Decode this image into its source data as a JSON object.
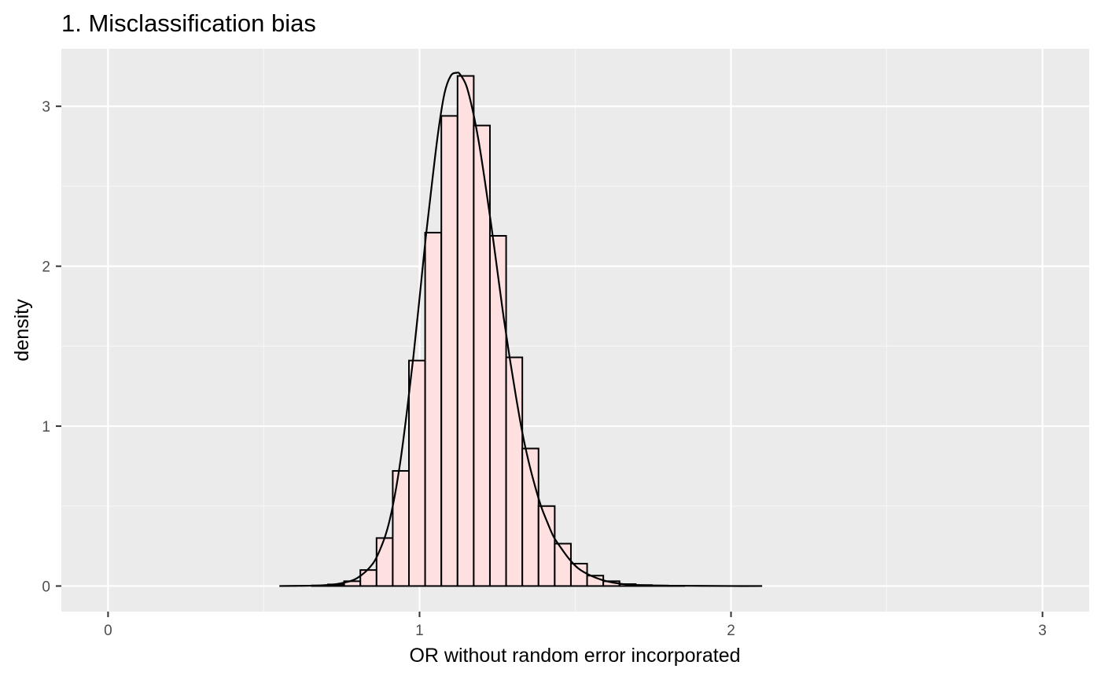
{
  "chart_data": {
    "type": "bar",
    "subtype": "histogram-with-density",
    "title": "1. Misclassification bias",
    "xlabel": "OR without random error incorporated",
    "ylabel": "density",
    "xlim": [
      -0.15,
      3.15
    ],
    "ylim": [
      -0.16,
      3.36
    ],
    "x_ticks": [
      0,
      1,
      2,
      3
    ],
    "x_tick_labels": [
      "0",
      "1",
      "2",
      "3"
    ],
    "y_ticks": [
      0,
      1,
      2,
      3
    ],
    "y_tick_labels": [
      "0",
      "1",
      "2",
      "3"
    ],
    "grid": true,
    "bin_width": 0.052,
    "bins": [
      {
        "x0": 0.55,
        "x1": 0.602,
        "density": 0.0
      },
      {
        "x0": 0.602,
        "x1": 0.654,
        "density": 0.0
      },
      {
        "x0": 0.654,
        "x1": 0.706,
        "density": 0.003
      },
      {
        "x0": 0.706,
        "x1": 0.758,
        "density": 0.01
      },
      {
        "x0": 0.758,
        "x1": 0.81,
        "density": 0.03
      },
      {
        "x0": 0.81,
        "x1": 0.862,
        "density": 0.1
      },
      {
        "x0": 0.862,
        "x1": 0.914,
        "density": 0.3
      },
      {
        "x0": 0.914,
        "x1": 0.966,
        "density": 0.72
      },
      {
        "x0": 0.966,
        "x1": 1.018,
        "density": 1.41
      },
      {
        "x0": 1.018,
        "x1": 1.07,
        "density": 2.21
      },
      {
        "x0": 1.07,
        "x1": 1.122,
        "density": 2.94
      },
      {
        "x0": 1.122,
        "x1": 1.174,
        "density": 3.19
      },
      {
        "x0": 1.174,
        "x1": 1.226,
        "density": 2.88
      },
      {
        "x0": 1.226,
        "x1": 1.278,
        "density": 2.19
      },
      {
        "x0": 1.278,
        "x1": 1.33,
        "density": 1.43
      },
      {
        "x0": 1.33,
        "x1": 1.382,
        "density": 0.86
      },
      {
        "x0": 1.382,
        "x1": 1.434,
        "density": 0.5
      },
      {
        "x0": 1.434,
        "x1": 1.486,
        "density": 0.265
      },
      {
        "x0": 1.486,
        "x1": 1.538,
        "density": 0.14
      },
      {
        "x0": 1.538,
        "x1": 1.59,
        "density": 0.065
      },
      {
        "x0": 1.59,
        "x1": 1.642,
        "density": 0.03
      },
      {
        "x0": 1.642,
        "x1": 1.694,
        "density": 0.012
      },
      {
        "x0": 1.694,
        "x1": 1.746,
        "density": 0.006
      },
      {
        "x0": 1.746,
        "x1": 1.798,
        "density": 0.003
      },
      {
        "x0": 1.798,
        "x1": 1.85,
        "density": 0.001
      },
      {
        "x0": 1.85,
        "x1": 1.902,
        "density": 0.0
      },
      {
        "x0": 1.902,
        "x1": 1.954,
        "density": 0.0
      },
      {
        "x0": 1.954,
        "x1": 2.006,
        "density": 0.0
      },
      {
        "x0": 2.006,
        "x1": 2.058,
        "density": 0.0
      },
      {
        "x0": 2.058,
        "x1": 2.1,
        "density": 0.0
      }
    ],
    "density_curve": {
      "x": [
        0.55,
        0.65,
        0.7,
        0.75,
        0.8,
        0.85,
        0.88,
        0.9,
        0.92,
        0.94,
        0.96,
        0.98,
        1.0,
        1.02,
        1.04,
        1.06,
        1.08,
        1.1,
        1.12,
        1.13,
        1.15,
        1.17,
        1.19,
        1.21,
        1.23,
        1.25,
        1.27,
        1.29,
        1.31,
        1.33,
        1.35,
        1.37,
        1.39,
        1.41,
        1.43,
        1.45,
        1.48,
        1.51,
        1.55,
        1.6,
        1.65,
        1.7,
        1.8,
        1.9,
        2.0,
        2.1
      ],
      "y": [
        0.0,
        0.002,
        0.006,
        0.018,
        0.05,
        0.14,
        0.26,
        0.38,
        0.56,
        0.8,
        1.1,
        1.43,
        1.8,
        2.18,
        2.52,
        2.84,
        3.08,
        3.19,
        3.21,
        3.2,
        3.13,
        2.98,
        2.78,
        2.53,
        2.26,
        1.97,
        1.68,
        1.42,
        1.18,
        0.96,
        0.78,
        0.63,
        0.5,
        0.4,
        0.31,
        0.25,
        0.17,
        0.11,
        0.065,
        0.03,
        0.013,
        0.006,
        0.002,
        0.001,
        0.0,
        0.0
      ]
    },
    "colors": {
      "panel_background": "#ebebeb",
      "grid_major": "#ffffff",
      "grid_minor": "#f5f5f5",
      "bar_fill": "#ffe0e0",
      "bar_outline": "#000000",
      "curve": "#000000"
    }
  }
}
